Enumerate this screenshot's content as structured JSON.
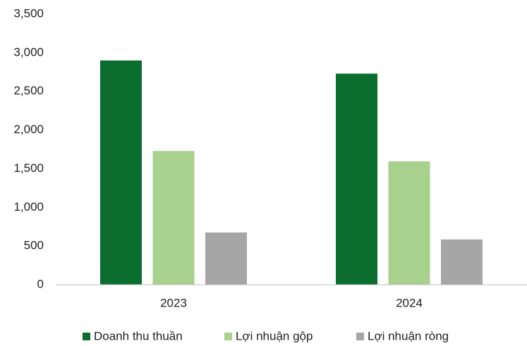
{
  "chart_data": {
    "type": "bar",
    "categories": [
      "2023",
      "2024"
    ],
    "series": [
      {
        "name": "Doanh thu thuần",
        "color": "#0b6e2e",
        "values": [
          2900,
          2730
        ]
      },
      {
        "name": "Lợi nhuận gộp",
        "color": "#a9d18e",
        "values": [
          1730,
          1595
        ]
      },
      {
        "name": "Lợi nhuận ròng",
        "color": "#a6a6a6",
        "values": [
          675,
          585
        ]
      }
    ],
    "ylim": [
      0,
      3500
    ],
    "yticks": [
      0,
      500,
      {
        "value": 1000,
        "label": "1,000"
      },
      {
        "value": 1500,
        "label": "1,500"
      },
      {
        "value": 2000,
        "label": "2,000"
      },
      {
        "value": 2500,
        "label": "2,500"
      },
      {
        "value": 3000,
        "label": "3,000"
      },
      {
        "value": 3500,
        "label": "3,500"
      }
    ],
    "grid": false,
    "legend": "bottom"
  }
}
